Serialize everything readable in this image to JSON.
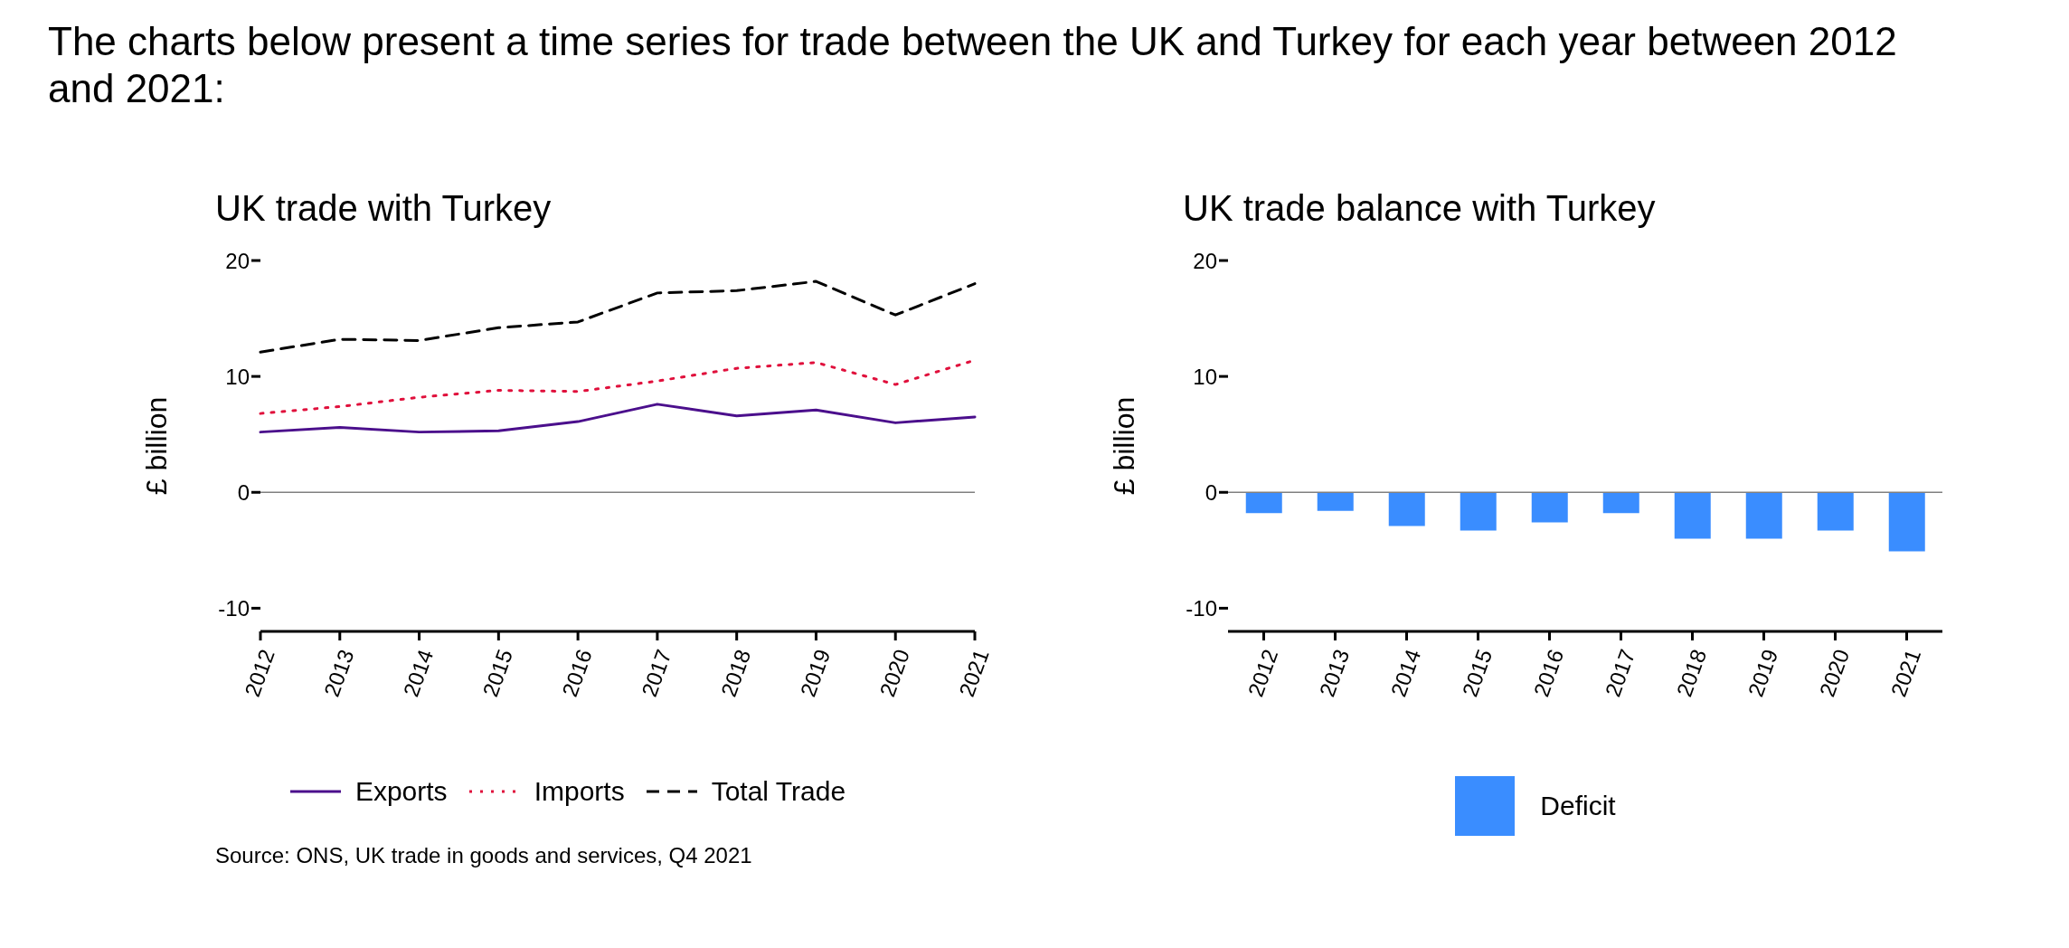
{
  "chart_data": [
    {
      "type": "line",
      "title": "UK trade with Turkey",
      "ylabel": "£ billion",
      "categories": [
        "2012",
        "2013",
        "2014",
        "2015",
        "2016",
        "2017",
        "2018",
        "2019",
        "2020",
        "2021"
      ],
      "series": [
        {
          "name": "Exports",
          "color": "#4b0f8c",
          "line_style": "solid",
          "values": [
            5.2,
            5.6,
            5.2,
            5.3,
            6.1,
            7.6,
            6.6,
            7.1,
            6.0,
            6.5
          ]
        },
        {
          "name": "Imports",
          "color": "#e0103c",
          "line_style": "dotted",
          "values": [
            6.8,
            7.4,
            8.2,
            8.8,
            8.7,
            9.6,
            10.7,
            11.2,
            9.3,
            11.4
          ]
        },
        {
          "name": "Total Trade",
          "color": "#000000",
          "line_style": "dashed",
          "values": [
            12.1,
            13.2,
            13.1,
            14.2,
            14.7,
            17.2,
            17.4,
            18.2,
            15.3,
            18.0
          ]
        }
      ],
      "ylim": [
        -12,
        20
      ],
      "yticks": [
        -10,
        0,
        10,
        20
      ],
      "grid": false,
      "legend": "bottom",
      "ref_lines": [
        {
          "axis": "y",
          "value": 0,
          "color": "#808080"
        }
      ],
      "annotations": [
        "The charts below present a time series for trade between the UK and Turkey for each year between 2012 and 2021:",
        "Source: ONS, UK trade in goods and services, Q4 2021"
      ]
    },
    {
      "type": "bar",
      "title": "UK trade balance with Turkey",
      "ylabel": "£ billion",
      "categories": [
        "2012",
        "2013",
        "2014",
        "2015",
        "2016",
        "2017",
        "2018",
        "2019",
        "2020",
        "2021"
      ],
      "series": [
        {
          "name": "Deficit",
          "color": "#3a8dff",
          "values": [
            -1.8,
            -1.6,
            -2.9,
            -3.3,
            -2.6,
            -1.8,
            -4.0,
            -4.0,
            -3.3,
            -5.1
          ]
        }
      ],
      "ylim": [
        -12,
        20
      ],
      "yticks": [
        -10,
        0,
        10,
        20
      ],
      "grid": false,
      "legend": "bottom",
      "ref_lines": [
        {
          "axis": "y",
          "value": 0,
          "color": "#808080"
        }
      ]
    }
  ]
}
